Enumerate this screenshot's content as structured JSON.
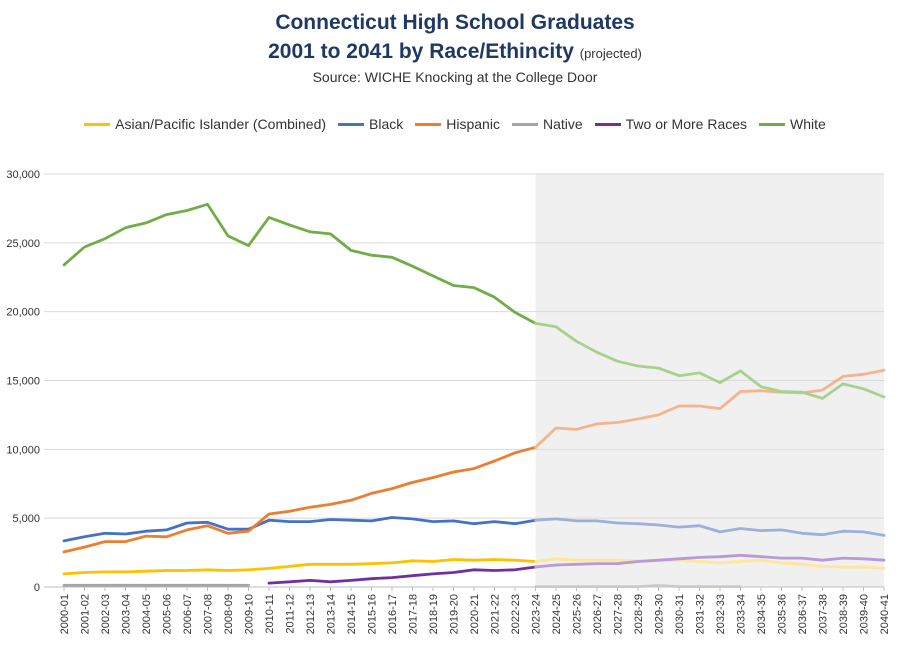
{
  "title_line1": "Connecticut High School Graduates",
  "title_line2": "2001 to 2041 by Race/Ethincity",
  "title_note": "(projected)",
  "source": "Source: WICHE Knocking at the College Door",
  "chart_data": {
    "type": "line",
    "y_ticks": [
      "0",
      "5,000",
      "10,000",
      "15,000",
      "20,000",
      "25,000",
      "30,000"
    ],
    "ylim": [
      0,
      30000
    ],
    "grid": true,
    "legend_position": "top",
    "projection_start": "2023-24",
    "shading_color": "#f0f0f0",
    "categories": [
      "2000-01",
      "2001-02",
      "2002-03",
      "2003-04",
      "2004-05",
      "2005-06",
      "2006-07",
      "2007-08",
      "2008-09",
      "2009-10",
      "2010-11",
      "2011-12",
      "2012-13",
      "2013-14",
      "2014-15",
      "2015-16",
      "2016-17",
      "2017-18",
      "2018-19",
      "2019-20",
      "2020-21",
      "2021-22",
      "2022-23",
      "2023-24",
      "2024-25",
      "2025-26",
      "2026-27",
      "2027-28",
      "2028-29",
      "2029-30",
      "2030-31",
      "2031-32",
      "2032-33",
      "2033-34",
      "2034-35",
      "2035-36",
      "2036-37",
      "2037-38",
      "2038-39",
      "2039-40",
      "2040-41"
    ],
    "series": [
      {
        "name": "Asian/Pacific Islander (Combined)",
        "color": "#ffc000",
        "projected_color": "#ffe699",
        "values": [
          950,
          1050,
          1100,
          1100,
          1150,
          1200,
          1200,
          1250,
          1200,
          1250,
          1350,
          1500,
          1650,
          1650,
          1650,
          1700,
          1750,
          1900,
          1850,
          2000,
          1950,
          2000,
          1950,
          1850,
          2050,
          1950,
          1950,
          1950,
          1900,
          1900,
          1950,
          1850,
          1750,
          1850,
          1950,
          1750,
          1650,
          1500,
          1450,
          1450,
          1350
        ]
      },
      {
        "name": "Black",
        "color": "#4472c4",
        "projected_color": "#9cb0de",
        "values": [
          3350,
          3650,
          3900,
          3850,
          4050,
          4150,
          4650,
          4700,
          4200,
          4200,
          4850,
          4750,
          4750,
          4900,
          4850,
          4800,
          5050,
          4950,
          4750,
          4800,
          4600,
          4750,
          4600,
          4850,
          4950,
          4800,
          4800,
          4650,
          4600,
          4500,
          4350,
          4450,
          4000,
          4250,
          4100,
          4150,
          3900,
          3800,
          4050,
          4000,
          3750
        ]
      },
      {
        "name": "Hispanic",
        "color": "#ed7d31",
        "projected_color": "#f2b58e",
        "values": [
          2550,
          2900,
          3300,
          3300,
          3700,
          3650,
          4150,
          4450,
          3900,
          4050,
          5300,
          5500,
          5800,
          6000,
          6300,
          6800,
          7150,
          7600,
          7950,
          8350,
          8600,
          9150,
          9750,
          10150,
          11550,
          11450,
          11850,
          11950,
          12200,
          12500,
          13150,
          13150,
          12950,
          14200,
          14250,
          14150,
          14100,
          14300,
          15300,
          15450,
          15750
        ]
      },
      {
        "name": "Native",
        "color": "#a5a5a5",
        "projected_color": "#c9c9c9",
        "values": [
          120,
          120,
          120,
          120,
          120,
          120,
          120,
          120,
          120,
          120,
          null,
          null,
          null,
          null,
          null,
          null,
          null,
          null,
          null,
          null,
          null,
          null,
          null,
          30,
          30,
          30,
          30,
          30,
          30,
          110,
          30,
          30,
          30,
          30,
          null,
          null,
          null,
          null,
          null,
          null,
          null
        ]
      },
      {
        "name": "Two or More Races",
        "color": "#7030a0",
        "projected_color": "#b79ad6",
        "values": [
          null,
          null,
          null,
          null,
          null,
          null,
          null,
          null,
          null,
          null,
          280,
          380,
          480,
          380,
          480,
          600,
          680,
          820,
          950,
          1050,
          1250,
          1200,
          1250,
          1450,
          1600,
          1650,
          1700,
          1700,
          1850,
          1950,
          2050,
          2150,
          2200,
          2300,
          2200,
          2100,
          2100,
          1950,
          2100,
          2050,
          1950
        ]
      },
      {
        "name": "White",
        "color": "#70ad47",
        "projected_color": "#a9d18e",
        "values": [
          23400,
          24700,
          25300,
          26100,
          26450,
          27050,
          27350,
          27800,
          25500,
          24800,
          26850,
          26300,
          25800,
          25650,
          24450,
          24100,
          23950,
          23300,
          22600,
          21900,
          21750,
          21050,
          19950,
          19150,
          18900,
          17850,
          17050,
          16400,
          16050,
          15900,
          15350,
          15550,
          14850,
          15700,
          14550,
          14200,
          14150,
          13700,
          14750,
          14400,
          13800
        ]
      }
    ]
  }
}
